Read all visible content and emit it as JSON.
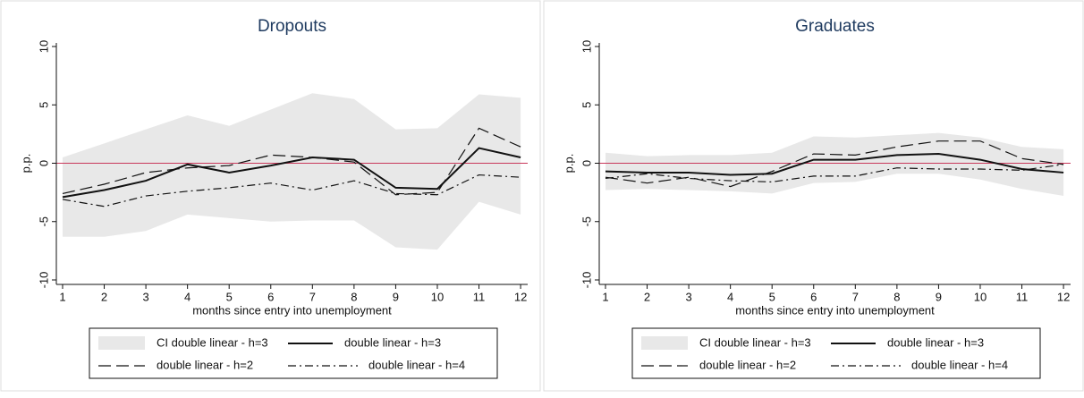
{
  "chart_data": [
    {
      "type": "line",
      "title": "Dropouts",
      "y_label": "p.p.",
      "x_label": "months since entry into unemployment",
      "x": [
        1,
        2,
        3,
        4,
        5,
        6,
        7,
        8,
        9,
        10,
        11,
        12
      ],
      "xlim": [
        0.85,
        12.17
      ],
      "xticks": [
        1,
        2,
        3,
        4,
        5,
        6,
        7,
        8,
        9,
        10,
        11,
        12
      ],
      "ylim": [
        -10,
        10
      ],
      "yticks": [
        -10,
        -5,
        0,
        5,
        10
      ],
      "hline": 0,
      "hline_color": "#c8385a",
      "band": {
        "name": "CI double linear - h=3",
        "color": "#e8e8e8",
        "upper": [
          0.5,
          1.7,
          2.9,
          4.1,
          3.2,
          4.6,
          6.0,
          5.5,
          2.9,
          3.0,
          5.9,
          5.6
        ],
        "lower": [
          -6.3,
          -6.3,
          -5.8,
          -4.4,
          -4.7,
          -5.0,
          -4.9,
          -4.9,
          -7.2,
          -7.4,
          -3.3,
          -4.4
        ]
      },
      "series": [
        {
          "name": "double linear - h=3",
          "color": "#111111",
          "dash": "solid",
          "values": [
            -2.9,
            -2.3,
            -1.5,
            -0.1,
            -0.8,
            -0.2,
            0.5,
            0.3,
            -2.1,
            -2.2,
            1.3,
            0.5
          ]
        },
        {
          "name": "double linear - h=2",
          "color": "#111111",
          "dash": "longdash",
          "values": [
            -2.6,
            -1.8,
            -0.8,
            -0.4,
            -0.2,
            0.7,
            0.5,
            0.1,
            -2.7,
            -2.5,
            3.0,
            1.4
          ]
        },
        {
          "name": "double linear - h=4",
          "color": "#111111",
          "dash": "dashdot",
          "values": [
            -3.1,
            -3.7,
            -2.8,
            -2.4,
            -2.1,
            -1.7,
            -2.3,
            -1.5,
            -2.6,
            -2.7,
            -1.0,
            -1.2
          ]
        }
      ]
    },
    {
      "type": "line",
      "title": "Graduates",
      "y_label": "p.p.",
      "x_label": "months since entry into unemployment",
      "x": [
        1,
        2,
        3,
        4,
        5,
        6,
        7,
        8,
        9,
        10,
        11,
        12
      ],
      "xlim": [
        0.85,
        12.17
      ],
      "xticks": [
        1,
        2,
        3,
        4,
        5,
        6,
        7,
        8,
        9,
        10,
        11,
        12
      ],
      "ylim": [
        -10,
        10
      ],
      "yticks": [
        -10,
        -5,
        0,
        5,
        10
      ],
      "hline": 0,
      "hline_color": "#c8385a",
      "band": {
        "name": "CI double linear - h=3",
        "color": "#e8e8e8",
        "upper": [
          0.9,
          0.6,
          0.7,
          0.7,
          0.9,
          2.3,
          2.2,
          2.4,
          2.6,
          2.2,
          1.4,
          1.2
        ],
        "lower": [
          -2.3,
          -2.2,
          -2.3,
          -2.4,
          -2.6,
          -1.7,
          -1.6,
          -0.9,
          -0.9,
          -1.4,
          -2.2,
          -2.8
        ]
      },
      "series": [
        {
          "name": "double linear - h=3",
          "color": "#111111",
          "dash": "solid",
          "values": [
            -0.7,
            -0.8,
            -0.8,
            -1.0,
            -0.9,
            0.3,
            0.3,
            0.7,
            0.8,
            0.3,
            -0.5,
            -0.8
          ]
        },
        {
          "name": "double linear - h=2",
          "color": "#111111",
          "dash": "longdash",
          "values": [
            -1.2,
            -1.7,
            -1.2,
            -2.0,
            -0.7,
            0.8,
            0.7,
            1.4,
            1.9,
            1.9,
            0.4,
            -0.1
          ]
        },
        {
          "name": "double linear - h=4",
          "color": "#111111",
          "dash": "dashdot",
          "values": [
            -1.3,
            -0.9,
            -1.3,
            -1.5,
            -1.6,
            -1.1,
            -1.1,
            -0.4,
            -0.5,
            -0.5,
            -0.6,
            -0.1
          ]
        }
      ]
    }
  ]
}
